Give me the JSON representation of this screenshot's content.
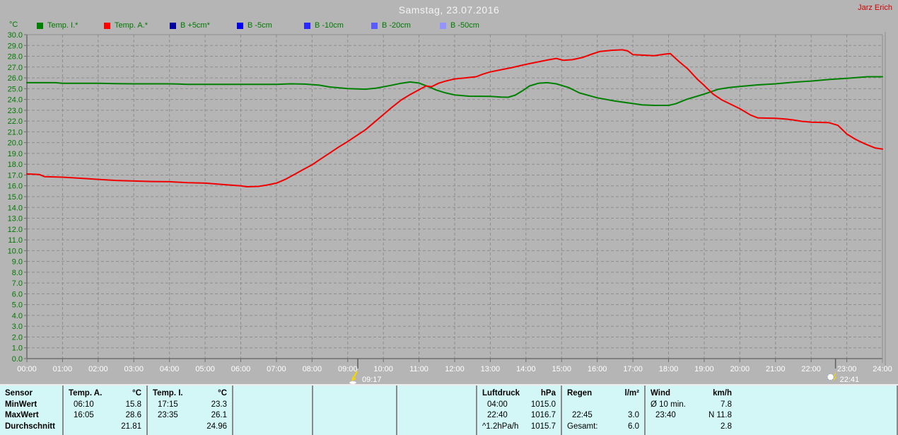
{
  "window": {
    "title": "Samstag, 23.07.2016",
    "watermark": "Jarz Erich"
  },
  "legend": {
    "unit_label": "°C",
    "items": [
      {
        "label": "Temp. I.*",
        "color": "#008000"
      },
      {
        "label": "Temp. A.*",
        "color": "#ff0000"
      },
      {
        "label": "B +5cm*",
        "color": "#0000a0"
      },
      {
        "label": "B -5cm",
        "color": "#0000f0"
      },
      {
        "label": "B -10cm",
        "color": "#2828ff"
      },
      {
        "label": "B -20cm",
        "color": "#5a5aff"
      },
      {
        "label": "B -50cm",
        "color": "#9494ff"
      }
    ]
  },
  "chart_data": {
    "type": "line",
    "title": "Samstag, 23.07.2016",
    "xlabel": "",
    "ylabel": "°C",
    "xlim": [
      0,
      24
    ],
    "ylim": [
      0,
      30
    ],
    "y_tick_step": 1,
    "grid": "dashed",
    "legend_position": "top",
    "x_ticks": [
      "00:00",
      "01:00",
      "02:00",
      "03:00",
      "04:00",
      "05:00",
      "06:00",
      "07:00",
      "08:00",
      "09:00",
      "10:00",
      "11:00",
      "12:00",
      "13:00",
      "14:00",
      "15:00",
      "16:00",
      "17:00",
      "18:00",
      "19:00",
      "20:00",
      "21:00",
      "22:00",
      "23:00",
      "24:00"
    ],
    "series": [
      {
        "name": "Temp. I.*",
        "color": "#008000",
        "points": [
          [
            0,
            25.55
          ],
          [
            0.8,
            25.55
          ],
          [
            1,
            25.5
          ],
          [
            2,
            25.5
          ],
          [
            2.5,
            25.47
          ],
          [
            3,
            25.45
          ],
          [
            4,
            25.45
          ],
          [
            4.5,
            25.4
          ],
          [
            5,
            25.4
          ],
          [
            6,
            25.4
          ],
          [
            7,
            25.4
          ],
          [
            7.4,
            25.45
          ],
          [
            7.8,
            25.42
          ],
          [
            8.2,
            25.32
          ],
          [
            8.5,
            25.15
          ],
          [
            9,
            25.0
          ],
          [
            9.5,
            24.95
          ],
          [
            9.8,
            25.05
          ],
          [
            10.2,
            25.3
          ],
          [
            10.5,
            25.5
          ],
          [
            10.75,
            25.62
          ],
          [
            11,
            25.52
          ],
          [
            11.25,
            25.2
          ],
          [
            11.5,
            24.85
          ],
          [
            11.75,
            24.6
          ],
          [
            12,
            24.42
          ],
          [
            12.4,
            24.3
          ],
          [
            13,
            24.28
          ],
          [
            13.3,
            24.22
          ],
          [
            13.5,
            24.2
          ],
          [
            13.7,
            24.4
          ],
          [
            13.9,
            24.8
          ],
          [
            14.1,
            25.25
          ],
          [
            14.35,
            25.5
          ],
          [
            14.6,
            25.55
          ],
          [
            14.85,
            25.45
          ],
          [
            15.2,
            25.1
          ],
          [
            15.5,
            24.6
          ],
          [
            16,
            24.15
          ],
          [
            16.5,
            23.85
          ],
          [
            17,
            23.62
          ],
          [
            17.25,
            23.5
          ],
          [
            17.6,
            23.45
          ],
          [
            18,
            23.45
          ],
          [
            18.2,
            23.6
          ],
          [
            18.5,
            24.0
          ],
          [
            19,
            24.5
          ],
          [
            19.4,
            24.95
          ],
          [
            19.7,
            25.1
          ],
          [
            20,
            25.2
          ],
          [
            20.5,
            25.35
          ],
          [
            21,
            25.45
          ],
          [
            21.5,
            25.6
          ],
          [
            22,
            25.7
          ],
          [
            22.5,
            25.85
          ],
          [
            23,
            25.95
          ],
          [
            23.58,
            26.1
          ],
          [
            24,
            26.1
          ]
        ]
      },
      {
        "name": "Temp. A.*",
        "color": "#f00000",
        "points": [
          [
            0,
            17.1
          ],
          [
            0.35,
            17.05
          ],
          [
            0.5,
            16.85
          ],
          [
            1,
            16.8
          ],
          [
            1.5,
            16.7
          ],
          [
            2,
            16.6
          ],
          [
            2.5,
            16.5
          ],
          [
            3,
            16.45
          ],
          [
            3.5,
            16.4
          ],
          [
            4,
            16.38
          ],
          [
            4.5,
            16.3
          ],
          [
            5,
            16.25
          ],
          [
            5.5,
            16.12
          ],
          [
            6,
            16.0
          ],
          [
            6.17,
            15.92
          ],
          [
            6.5,
            15.95
          ],
          [
            6.75,
            16.08
          ],
          [
            7,
            16.25
          ],
          [
            7.25,
            16.6
          ],
          [
            7.5,
            17.05
          ],
          [
            7.75,
            17.5
          ],
          [
            8,
            17.95
          ],
          [
            8.25,
            18.5
          ],
          [
            8.5,
            19.05
          ],
          [
            8.75,
            19.6
          ],
          [
            9,
            20.1
          ],
          [
            9.25,
            20.65
          ],
          [
            9.5,
            21.2
          ],
          [
            9.75,
            21.9
          ],
          [
            10,
            22.6
          ],
          [
            10.25,
            23.3
          ],
          [
            10.5,
            23.95
          ],
          [
            10.75,
            24.45
          ],
          [
            11,
            24.9
          ],
          [
            11.2,
            25.25
          ],
          [
            11.35,
            25.18
          ],
          [
            11.55,
            25.5
          ],
          [
            11.75,
            25.7
          ],
          [
            12,
            25.9
          ],
          [
            12.3,
            26.0
          ],
          [
            12.6,
            26.1
          ],
          [
            12.8,
            26.35
          ],
          [
            13,
            26.55
          ],
          [
            13.3,
            26.75
          ],
          [
            13.6,
            26.95
          ],
          [
            14,
            27.25
          ],
          [
            14.3,
            27.45
          ],
          [
            14.6,
            27.65
          ],
          [
            14.85,
            27.8
          ],
          [
            15.05,
            27.62
          ],
          [
            15.3,
            27.68
          ],
          [
            15.6,
            27.9
          ],
          [
            15.85,
            28.2
          ],
          [
            16.08,
            28.45
          ],
          [
            16.4,
            28.55
          ],
          [
            16.7,
            28.6
          ],
          [
            16.85,
            28.5
          ],
          [
            17,
            28.15
          ],
          [
            17.3,
            28.1
          ],
          [
            17.6,
            28.05
          ],
          [
            17.9,
            28.2
          ],
          [
            18.05,
            28.25
          ],
          [
            18.3,
            27.5
          ],
          [
            18.55,
            26.8
          ],
          [
            18.8,
            25.9
          ],
          [
            19,
            25.3
          ],
          [
            19.25,
            24.5
          ],
          [
            19.5,
            23.95
          ],
          [
            19.75,
            23.55
          ],
          [
            20,
            23.15
          ],
          [
            20.3,
            22.55
          ],
          [
            20.5,
            22.3
          ],
          [
            20.75,
            22.27
          ],
          [
            21,
            22.25
          ],
          [
            21.3,
            22.18
          ],
          [
            21.5,
            22.1
          ],
          [
            21.75,
            21.97
          ],
          [
            22,
            21.9
          ],
          [
            22.5,
            21.85
          ],
          [
            22.75,
            21.6
          ],
          [
            23,
            20.8
          ],
          [
            23.25,
            20.3
          ],
          [
            23.5,
            19.9
          ],
          [
            23.8,
            19.5
          ],
          [
            24,
            19.4
          ]
        ]
      }
    ],
    "annotations": [
      {
        "label": "09:17",
        "hour": 9.283,
        "icon": "rain-event-down-icon"
      },
      {
        "label": "22:41",
        "hour": 22.683,
        "icon": "night-event-icon"
      }
    ]
  },
  "table": {
    "row_labels": [
      "Sensor",
      "MinWert",
      "MaxWert",
      "Durchschnitt"
    ],
    "columns": [
      {
        "id": "temp-a",
        "header": "Temp. A.",
        "unit": "°C",
        "rows": [
          [
            "06:10",
            "15.8"
          ],
          [
            "16:05",
            "28.6"
          ],
          [
            "",
            "21.81"
          ]
        ]
      },
      {
        "id": "temp-i",
        "header": "Temp. I.",
        "unit": "°C",
        "rows": [
          [
            "17:15",
            "23.3"
          ],
          [
            "23:35",
            "26.1"
          ],
          [
            "",
            "24.96"
          ]
        ]
      },
      {
        "id": "empty-1",
        "header": "",
        "unit": "",
        "rows": [
          [
            "",
            ""
          ],
          [
            "",
            ""
          ],
          [
            "",
            ""
          ]
        ]
      },
      {
        "id": "empty-2",
        "header": "",
        "unit": "",
        "rows": [
          [
            "",
            ""
          ],
          [
            "",
            ""
          ],
          [
            "",
            ""
          ]
        ]
      },
      {
        "id": "empty-3",
        "header": "",
        "unit": "",
        "rows": [
          [
            "",
            ""
          ],
          [
            "",
            ""
          ],
          [
            "",
            ""
          ]
        ]
      },
      {
        "id": "luftdruck",
        "header": "Luftdruck",
        "unit": "hPa",
        "rows": [
          [
            "04:00",
            "1015.0"
          ],
          [
            "22:40",
            "1016.7"
          ],
          [
            "^1.2hPa/h",
            "1015.7"
          ]
        ]
      },
      {
        "id": "regen",
        "header": "Regen",
        "unit": "l/m²",
        "rows": [
          [
            "",
            ""
          ],
          [
            "22:45",
            "3.0"
          ],
          [
            "Gesamt:",
            "6.0"
          ]
        ]
      },
      {
        "id": "wind",
        "header": "Wind",
        "unit": "km/h",
        "rows": [
          [
            "Ø 10 min.",
            "7.8"
          ],
          [
            "23:40",
            "N 11.8"
          ],
          [
            "",
            "2.8"
          ]
        ]
      }
    ]
  }
}
